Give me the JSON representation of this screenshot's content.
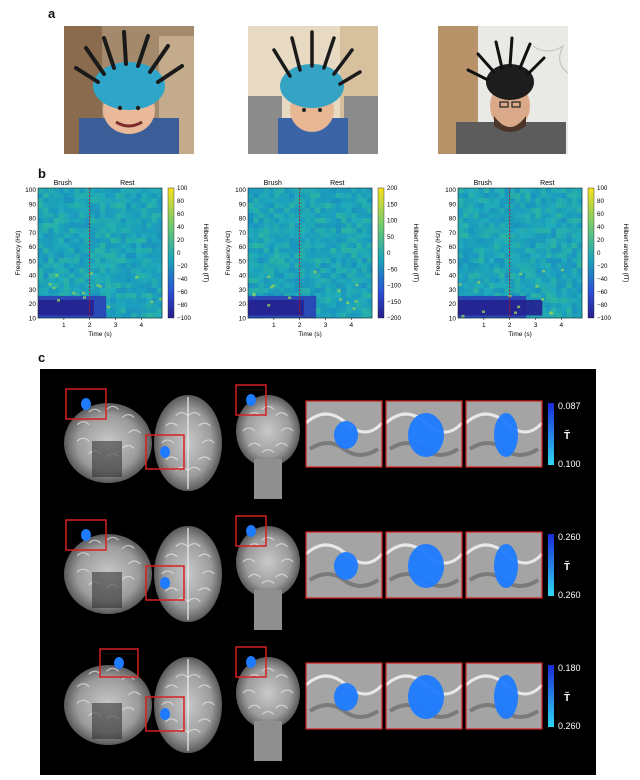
{
  "panels": {
    "a": "a",
    "b": "b",
    "c": "c"
  },
  "panel_b": {
    "brush_label": "Brush",
    "rest_label": "Rest",
    "ylabel": "Frequency (Hz)",
    "xlabel": "Time (s)",
    "colorbar_label": "Hilbert amplitude (fT)",
    "yticks": [
      "100",
      "90",
      "80",
      "70",
      "60",
      "50",
      "40",
      "30",
      "20",
      "10"
    ],
    "xticks": [
      "1",
      "2",
      "3",
      "4"
    ],
    "colorbars": [
      [
        "100",
        "80",
        "60",
        "40",
        "20",
        "0",
        "−20",
        "−40",
        "−60",
        "−80",
        "−100"
      ],
      [
        "200",
        "150",
        "100",
        "50",
        "0",
        "−50",
        "−100",
        "−150",
        "−200"
      ],
      [
        "100",
        "80",
        "60",
        "40",
        "20",
        "0",
        "−20",
        "−40",
        "−60",
        "−80",
        "−100"
      ]
    ]
  },
  "panel_c": {
    "rows": [
      {
        "top": "0.087",
        "bottom": "0.100",
        "symbol": "T̃"
      },
      {
        "top": "0.260",
        "bottom": "0.260",
        "symbol": "T̃"
      },
      {
        "top": "0.180",
        "bottom": "0.260",
        "symbol": "T̃"
      }
    ]
  },
  "colors": {
    "spec_low": "#2a1e8c",
    "spec_mid": "#1ba3b8",
    "spec_high": "#f7e11e",
    "activation": "#1e7bff",
    "highlight_box": "#d62020"
  }
}
